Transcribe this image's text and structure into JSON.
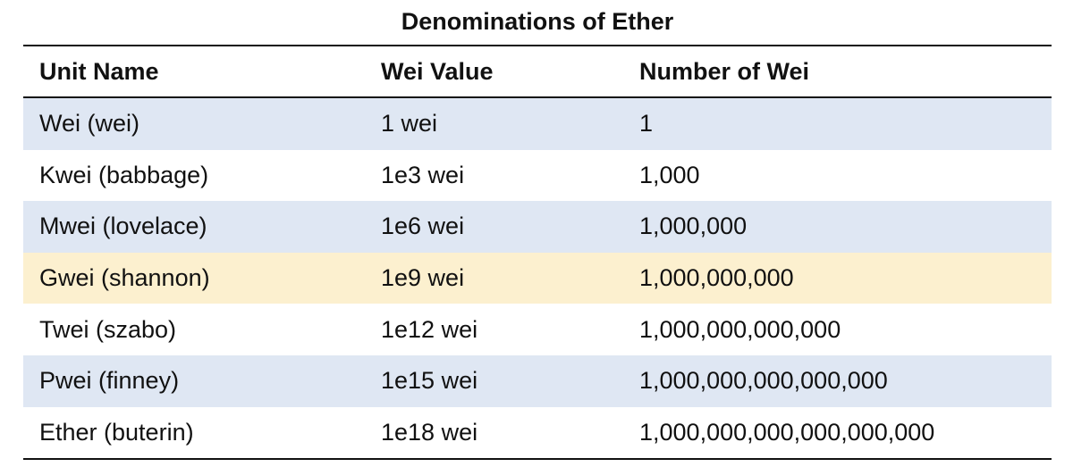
{
  "table": {
    "title": "Denominations of Ether",
    "headers": [
      "Unit Name",
      "Wei Value",
      "Number of Wei"
    ],
    "rows": [
      {
        "unit": "Wei (wei)",
        "wei_value": "1 wei",
        "number_of_wei": "1",
        "style": "shaded"
      },
      {
        "unit": "Kwei (babbage)",
        "wei_value": "1e3 wei",
        "number_of_wei": "1,000",
        "style": "plain"
      },
      {
        "unit": "Mwei (lovelace)",
        "wei_value": "1e6 wei",
        "number_of_wei": "1,000,000",
        "style": "shaded"
      },
      {
        "unit": "Gwei (shannon)",
        "wei_value": "1e9 wei",
        "number_of_wei": "1,000,000,000",
        "style": "highlight"
      },
      {
        "unit": "Twei (szabo)",
        "wei_value": "1e12 wei",
        "number_of_wei": "1,000,000,000,000",
        "style": "plain"
      },
      {
        "unit": "Pwei (finney)",
        "wei_value": "1e15 wei",
        "number_of_wei": "1,000,000,000,000,000",
        "style": "shaded"
      },
      {
        "unit": "Ether (buterin)",
        "wei_value": "1e18 wei",
        "number_of_wei": "1,000,000,000,000,000,000",
        "style": "plain"
      }
    ],
    "colors": {
      "shaded_row": "#dfe7f3",
      "highlight_row": "#fcf0cf",
      "rule": "#111111"
    }
  }
}
